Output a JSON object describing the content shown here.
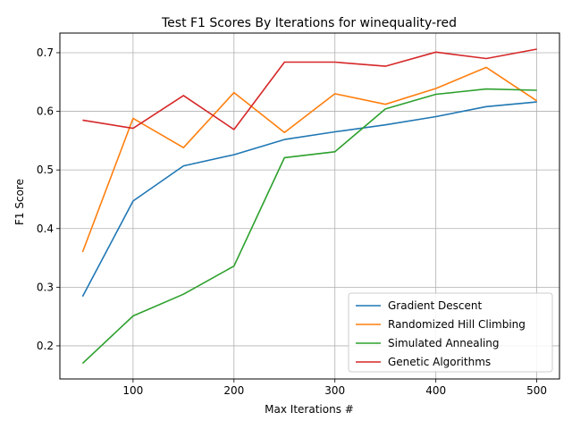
{
  "chart_data": {
    "type": "line",
    "title": "Test F1 Scores By Iterations for winequality-red",
    "xlabel": "Max Iterations #",
    "ylabel": "F1 Score",
    "xlim": [
      27.5,
      522.5
    ],
    "ylim": [
      0.1435,
      0.7335
    ],
    "x_ticks": [
      100,
      200,
      300,
      400,
      500
    ],
    "y_ticks": [
      0.2,
      0.3,
      0.4,
      0.5,
      0.6,
      0.7
    ],
    "x_tick_labels": [
      "100",
      "200",
      "300",
      "400",
      "500"
    ],
    "y_tick_labels": [
      "0.2",
      "0.3",
      "0.4",
      "0.5",
      "0.6",
      "0.7"
    ],
    "grid": true,
    "legend_position": "lower-right",
    "x": [
      50,
      100,
      150,
      200,
      250,
      300,
      350,
      400,
      450,
      500
    ],
    "series": [
      {
        "name": "Gradient Descent",
        "color": "#1f77b4",
        "values": [
          0.284,
          0.447,
          0.507,
          0.526,
          0.552,
          0.565,
          0.577,
          0.591,
          0.608,
          0.616
        ]
      },
      {
        "name": "Randomized Hill Climbing",
        "color": "#ff7f0e",
        "values": [
          0.36,
          0.588,
          0.538,
          0.632,
          0.564,
          0.63,
          0.612,
          0.639,
          0.675,
          0.618
        ]
      },
      {
        "name": "Simulated Annealing",
        "color": "#2ca02c",
        "values": [
          0.17,
          0.251,
          0.288,
          0.336,
          0.521,
          0.531,
          0.604,
          0.629,
          0.638,
          0.636
        ]
      },
      {
        "name": "Genetic Algorithms",
        "color": "#d62728",
        "values": [
          0.585,
          0.571,
          0.627,
          0.569,
          0.684,
          0.684,
          0.677,
          0.701,
          0.69,
          0.706
        ]
      }
    ]
  }
}
